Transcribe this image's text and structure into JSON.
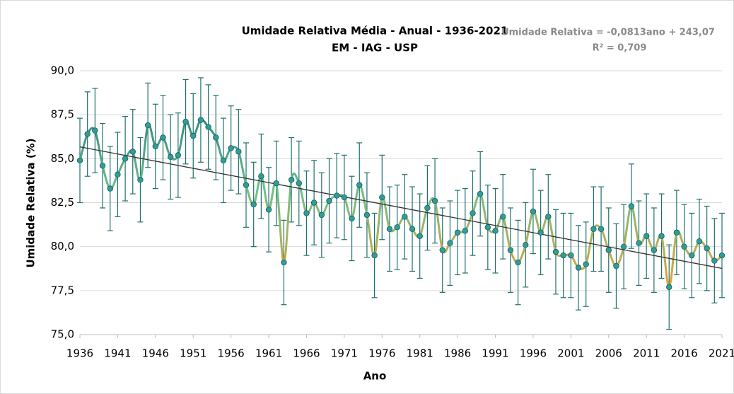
{
  "chart_data": {
    "type": "line",
    "title": "Umidade Relativa Média - Anual - 1936-2021",
    "subtitle": "EM - IAG - USP",
    "x_label": "Ano",
    "y_label": "Umidade Relativa (%)",
    "x": [
      1936,
      1937,
      1938,
      1939,
      1940,
      1941,
      1942,
      1943,
      1944,
      1945,
      1946,
      1947,
      1948,
      1949,
      1950,
      1951,
      1952,
      1953,
      1954,
      1955,
      1956,
      1957,
      1958,
      1959,
      1960,
      1961,
      1962,
      1963,
      1964,
      1965,
      1966,
      1967,
      1968,
      1969,
      1970,
      1971,
      1972,
      1973,
      1974,
      1975,
      1976,
      1977,
      1978,
      1979,
      1980,
      1981,
      1982,
      1983,
      1984,
      1985,
      1986,
      1987,
      1988,
      1989,
      1990,
      1991,
      1992,
      1993,
      1994,
      1995,
      1996,
      1997,
      1998,
      1999,
      2000,
      2001,
      2002,
      2003,
      2004,
      2005,
      2006,
      2007,
      2008,
      2009,
      2010,
      2011,
      2012,
      2013,
      2014,
      2015,
      2016,
      2017,
      2018,
      2019,
      2020,
      2021
    ],
    "series": [
      {
        "name": "Umidade Relativa",
        "color": "#2e9e9a",
        "line_colors": [
          "#1e7575",
          "#6cc08a",
          "#e0a535"
        ],
        "values": [
          84.9,
          86.4,
          86.6,
          84.6,
          83.3,
          84.1,
          85.0,
          85.4,
          83.8,
          86.9,
          85.7,
          86.2,
          85.1,
          85.2,
          87.1,
          86.3,
          87.2,
          86.8,
          86.2,
          84.9,
          85.6,
          85.4,
          83.5,
          82.4,
          84.0,
          82.1,
          83.6,
          79.1,
          83.8,
          83.6,
          81.9,
          82.5,
          81.8,
          82.6,
          82.9,
          82.8,
          81.6,
          83.5,
          81.8,
          79.5,
          82.8,
          81.0,
          81.1,
          81.7,
          81.0,
          80.6,
          82.2,
          82.6,
          79.8,
          80.2,
          80.8,
          80.9,
          81.9,
          83.0,
          81.1,
          80.9,
          81.7,
          79.8,
          79.1,
          80.1,
          82.0,
          80.8,
          81.7,
          79.7,
          79.5,
          79.5,
          78.8,
          79.0,
          81.0,
          81.0,
          79.8,
          78.9,
          80.0,
          82.3,
          80.2,
          80.6,
          79.8,
          80.6,
          77.7,
          80.8,
          80.0,
          79.5,
          80.3,
          79.9,
          79.2,
          79.5
        ],
        "errors": [
          2.4,
          2.4,
          2.4,
          2.4,
          2.4,
          2.4,
          2.4,
          2.4,
          2.4,
          2.4,
          2.4,
          2.4,
          2.4,
          2.4,
          2.4,
          2.4,
          2.4,
          2.4,
          2.4,
          2.4,
          2.4,
          2.4,
          2.4,
          2.4,
          2.4,
          2.4,
          2.4,
          2.4,
          2.4,
          2.4,
          2.4,
          2.4,
          2.4,
          2.4,
          2.4,
          2.4,
          2.4,
          2.4,
          2.4,
          2.4,
          2.4,
          2.4,
          2.4,
          2.4,
          2.4,
          2.4,
          2.4,
          2.4,
          2.4,
          2.4,
          2.4,
          2.4,
          2.4,
          2.4,
          2.4,
          2.4,
          2.4,
          2.4,
          2.4,
          2.4,
          2.4,
          2.4,
          2.4,
          2.4,
          2.4,
          2.4,
          2.4,
          2.4,
          2.4,
          2.4,
          2.4,
          2.4,
          2.4,
          2.4,
          2.4,
          2.4,
          2.4,
          2.4,
          2.4,
          2.4,
          2.4,
          2.4,
          2.4,
          2.4,
          2.4,
          2.4
        ],
        "error_color": "#1f6f6f"
      }
    ],
    "trendline": {
      "slope": -0.0813,
      "intercept": 243.07,
      "color": "#333333",
      "label": "Umidade Relativa = -0,0813ano + 243,07",
      "r2_label": "R² = 0,709"
    },
    "xlim": [
      1936,
      2021
    ],
    "xticks": [
      1936,
      1941,
      1946,
      1951,
      1956,
      1961,
      1966,
      1971,
      1976,
      1981,
      1986,
      1991,
      1996,
      2001,
      2006,
      2011,
      2016,
      2021
    ],
    "ylim": [
      75,
      90
    ],
    "yticks": [
      {
        "value": 75,
        "label": "75,0"
      },
      {
        "value": 77.5,
        "label": "77,5"
      },
      {
        "value": 80,
        "label": "80,0"
      },
      {
        "value": 82.5,
        "label": "82,5"
      },
      {
        "value": 85,
        "label": "85,0"
      },
      {
        "value": 87.5,
        "label": "87,5"
      },
      {
        "value": 90,
        "label": "90,0"
      }
    ],
    "grid": true
  }
}
